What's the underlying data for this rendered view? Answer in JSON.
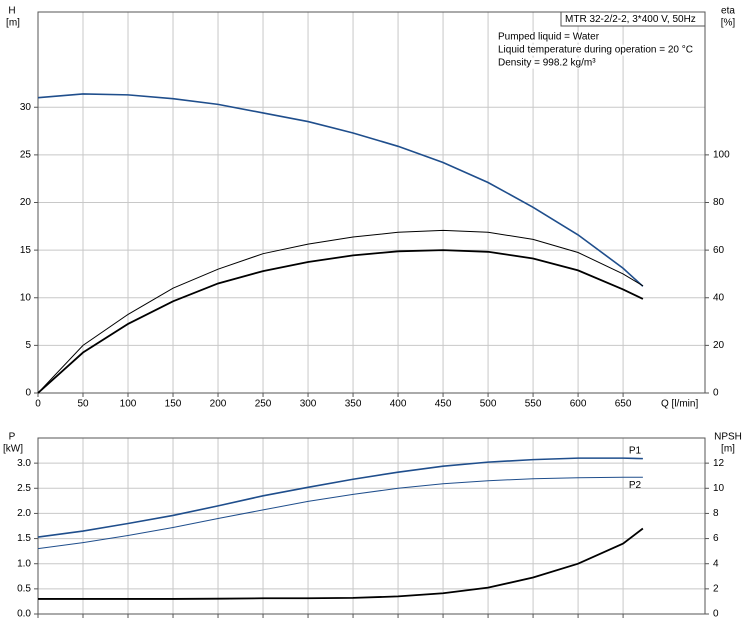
{
  "chart_data": [
    {
      "type": "line",
      "ylabel": "H",
      "yunit": "[m]",
      "y2label": "eta",
      "y2unit": "[%]",
      "xlabel": "Q [l/min]",
      "annotations": [
        "MTR 32-2/2-2, 3*400 V, 50Hz",
        "Pumped liquid = Water",
        "Liquid temperature during operation = 20 °C",
        "Density = 998.2 kg/m³"
      ],
      "x": [
        0,
        50,
        100,
        150,
        200,
        250,
        300,
        350,
        400,
        450,
        500,
        550,
        600,
        650,
        672
      ],
      "series": [
        {
          "color": "#1f4e8c",
          "width": 1.6,
          "values": [
            31,
            31.4,
            31.3,
            30.9,
            30.3,
            29.4,
            28.5,
            27.3,
            25.9,
            24.2,
            22.1,
            19.5,
            16.6,
            13.1,
            11.2
          ]
        },
        {
          "color": "#000000",
          "width": 1,
          "axis": "y2",
          "values": [
            0,
            20,
            33,
            44,
            52,
            58.5,
            62.5,
            65.5,
            67.5,
            68.3,
            67.5,
            64.5,
            59,
            50,
            45
          ]
        },
        {
          "color": "#000000",
          "width": 1.8,
          "axis": "y2",
          "values": [
            0,
            17,
            29,
            38.5,
            46,
            51.2,
            55,
            57.8,
            59.5,
            60,
            59.3,
            56.5,
            51.5,
            43.5,
            39.5
          ]
        }
      ],
      "xlim": [
        0,
        741
      ],
      "xticks": [
        0,
        50,
        100,
        150,
        200,
        250,
        300,
        350,
        400,
        450,
        500,
        550,
        600,
        650
      ],
      "ylim": [
        0,
        40
      ],
      "yticks": [
        0,
        5,
        10,
        15,
        20,
        25,
        30
      ],
      "y2lim": [
        0,
        160
      ],
      "y2ticks": [
        0,
        20,
        40,
        60,
        80,
        100
      ],
      "grid": true
    },
    {
      "type": "line",
      "ylabel": "P",
      "yunit": "[kW]",
      "y2label": "NPSH",
      "y2unit": "[m]",
      "x": [
        0,
        50,
        100,
        150,
        200,
        250,
        300,
        350,
        400,
        450,
        500,
        550,
        600,
        650,
        672
      ],
      "series": [
        {
          "name": "P1",
          "color": "#1f4e8c",
          "width": 1.6,
          "values": [
            1.53,
            1.65,
            1.8,
            1.96,
            2.15,
            2.35,
            2.52,
            2.68,
            2.82,
            2.94,
            3.02,
            3.07,
            3.1,
            3.1,
            3.09
          ]
        },
        {
          "name": "P2",
          "color": "#1f4e8c",
          "width": 1,
          "values": [
            1.3,
            1.42,
            1.56,
            1.72,
            1.9,
            2.07,
            2.24,
            2.38,
            2.5,
            2.59,
            2.65,
            2.69,
            2.71,
            2.72,
            2.72
          ]
        },
        {
          "color": "#000000",
          "width": 1.8,
          "axis": "y2",
          "values": [
            1.2,
            1.2,
            1.2,
            1.2,
            1.22,
            1.25,
            1.25,
            1.28,
            1.4,
            1.65,
            2.1,
            2.9,
            4.0,
            5.6,
            6.8
          ]
        }
      ],
      "xlim": [
        0,
        741
      ],
      "ylim": [
        0,
        3.5
      ],
      "yticks": [
        {
          "value": 0,
          "label": "0.0"
        },
        0.5,
        {
          "value": 1,
          "label": "1.0"
        },
        1.5,
        {
          "value": 2,
          "label": "2.0"
        },
        2.5,
        {
          "value": 3,
          "label": "3.0"
        }
      ],
      "y2lim": [
        0,
        14
      ],
      "y2ticks": [
        0,
        2,
        4,
        6,
        8,
        10,
        12
      ],
      "grid": true
    }
  ]
}
